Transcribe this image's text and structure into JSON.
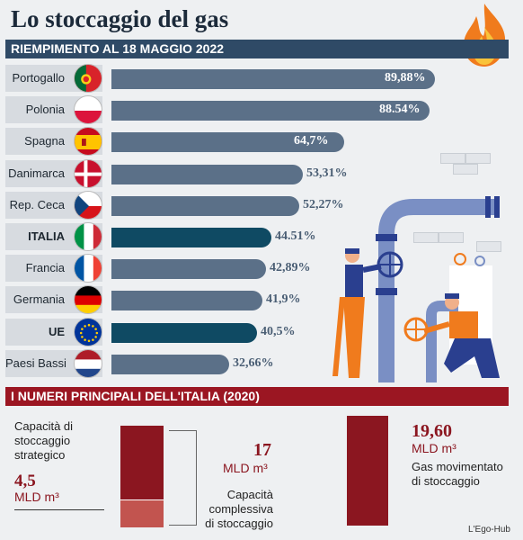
{
  "title": "Lo stoccaggio del gas",
  "chart_data": {
    "type": "bar",
    "title": "RIEMPIMENTO AL 18 MAGGIO 2022",
    "categories": [
      "Portogallo",
      "Polonia",
      "Spagna",
      "Danimarca",
      "Rep. Ceca",
      "ITALIA",
      "Francia",
      "Germania",
      "UE",
      "Paesi Bassi"
    ],
    "values": [
      89.88,
      88.54,
      64.7,
      53.31,
      52.27,
      44.51,
      42.89,
      41.9,
      40.5,
      32.66
    ],
    "value_labels": [
      "89,88%",
      "88.54%",
      "64,7%",
      "53,31%",
      "52,27%",
      "44.51%",
      "42,89%",
      "41,9%",
      "40,5%",
      "32,66%"
    ],
    "highlighted": [
      "ITALIA",
      "UE"
    ],
    "colors": {
      "standard": "#5b7088",
      "highlight": "#0f4a63"
    }
  },
  "section2": {
    "title": "I NUMERI PRINCIPALI DELL'ITALIA (2020)",
    "strategic_label": "Capacità di stoccaggio strategico",
    "strategic_value": "4,5",
    "strategic_unit": "MLD m³",
    "total_value": "17",
    "total_unit": "MLD m³",
    "total_label": "Capacità complessiva di stoccaggio",
    "moved_value": "19,60",
    "moved_unit": "MLD m³",
    "moved_label": "Gas movimentato di stoccaggio"
  },
  "credit": "L'Ego-Hub",
  "colors": {
    "dark_red": "#8b1620",
    "navy": "#2f4a66"
  }
}
